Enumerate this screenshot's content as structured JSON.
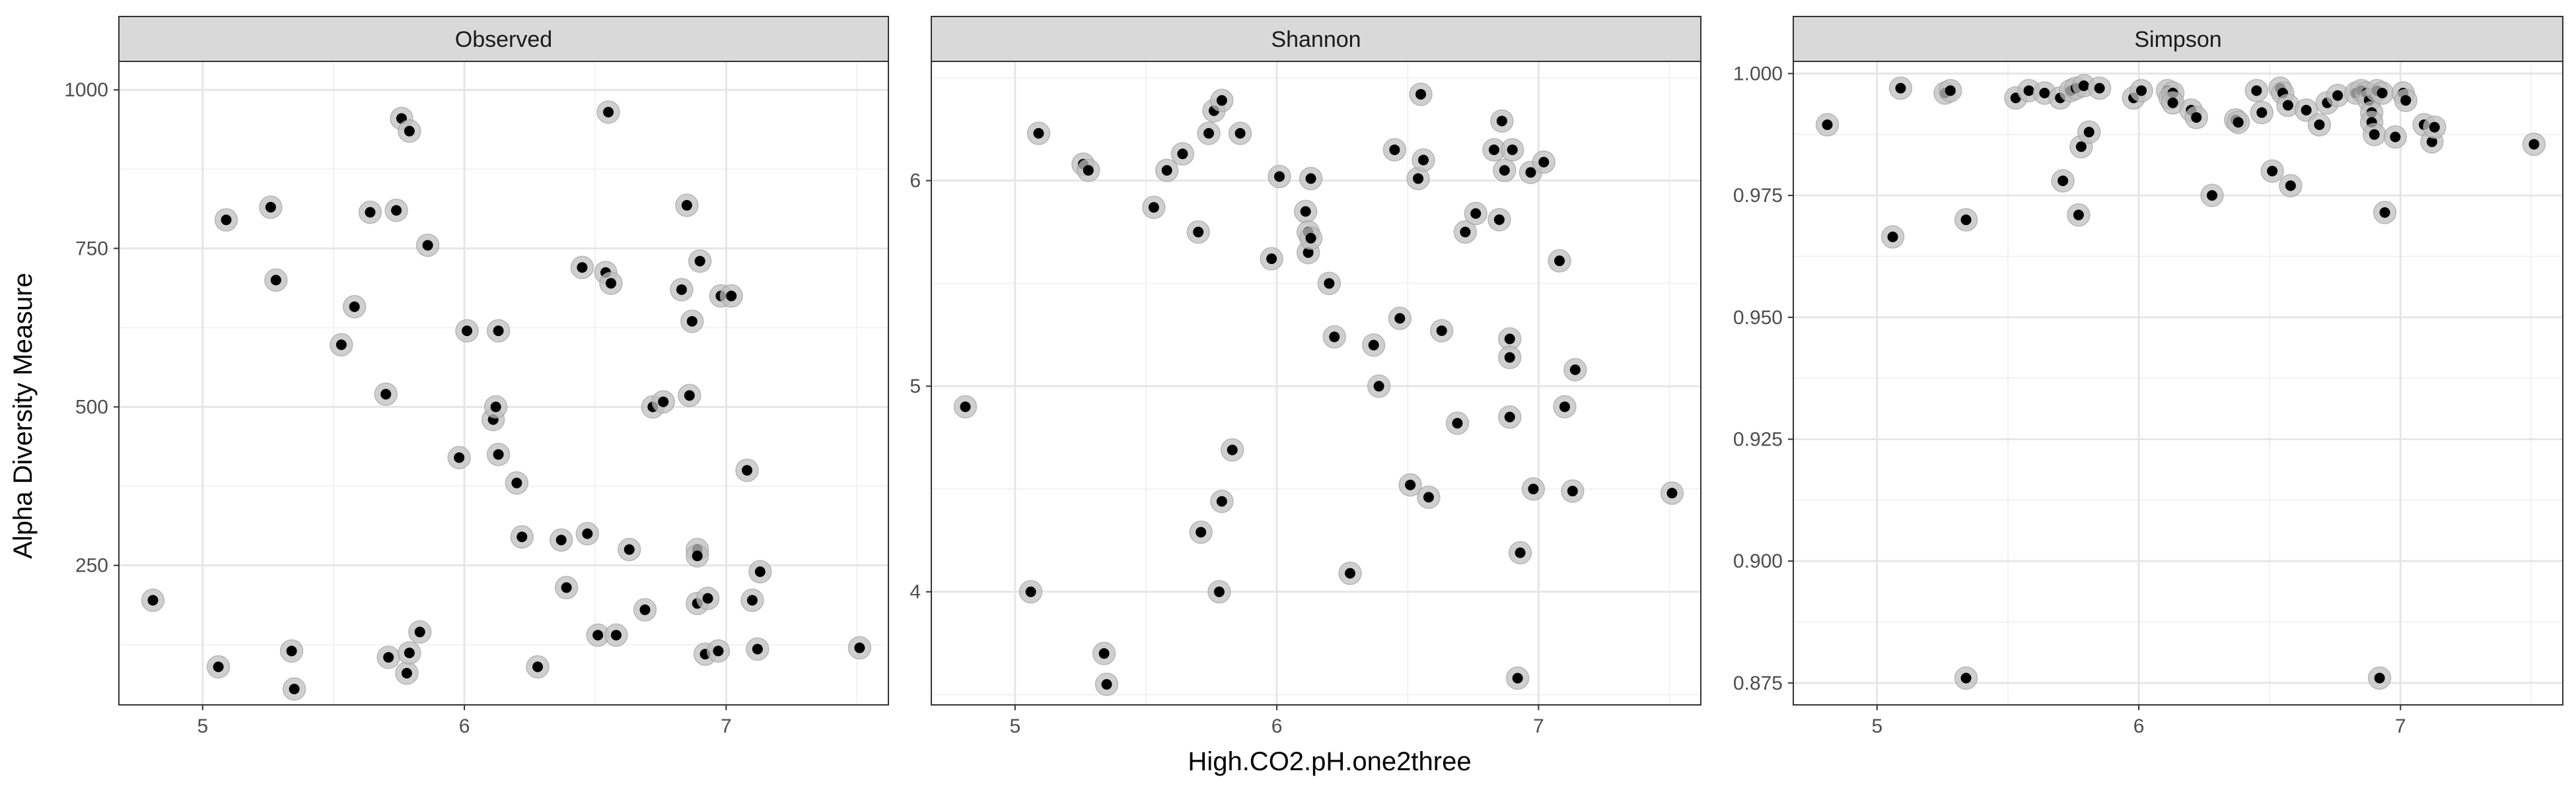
{
  "chart_data": {
    "type": "scatter",
    "xlabel": "High.CO2.pH.one2three",
    "ylabel": "Alpha Diversity Measure",
    "grid": true,
    "x_ticks": [
      5,
      6,
      7
    ],
    "xlim": [
      4.68,
      7.62
    ],
    "colors": {
      "point": "#000000",
      "halo": "#bfbfbf",
      "strip": "#d9d9d9",
      "panel_border": "#333333",
      "grid_major": "#e6e6e6",
      "grid_minor": "#f2f2f2"
    },
    "panels": [
      {
        "name": "Observed",
        "ylim": [
          30,
          1045
        ],
        "y_ticks": [
          250,
          500,
          750,
          1000
        ],
        "y_tick_labels": [
          "250",
          "500",
          "750",
          "1000"
        ],
        "points": [
          [
            4.81,
            195
          ],
          [
            5.06,
            90
          ],
          [
            5.09,
            795
          ],
          [
            5.26,
            815
          ],
          [
            5.28,
            700
          ],
          [
            5.34,
            115
          ],
          [
            5.35,
            55
          ],
          [
            5.53,
            598
          ],
          [
            5.58,
            658
          ],
          [
            5.64,
            807
          ],
          [
            5.7,
            520
          ],
          [
            5.71,
            105
          ],
          [
            5.74,
            810
          ],
          [
            5.76,
            955
          ],
          [
            5.78,
            80
          ],
          [
            5.79,
            935
          ],
          [
            5.79,
            112
          ],
          [
            5.83,
            145
          ],
          [
            5.86,
            755
          ],
          [
            5.98,
            420
          ],
          [
            6.01,
            620
          ],
          [
            6.11,
            480
          ],
          [
            6.12,
            500
          ],
          [
            6.13,
            620
          ],
          [
            6.13,
            425
          ],
          [
            6.2,
            380
          ],
          [
            6.22,
            295
          ],
          [
            6.28,
            90
          ],
          [
            6.37,
            290
          ],
          [
            6.39,
            215
          ],
          [
            6.45,
            720
          ],
          [
            6.47,
            300
          ],
          [
            6.51,
            140
          ],
          [
            6.54,
            712
          ],
          [
            6.56,
            695
          ],
          [
            6.55,
            965
          ],
          [
            6.58,
            140
          ],
          [
            6.63,
            275
          ],
          [
            6.69,
            180
          ],
          [
            6.72,
            500
          ],
          [
            6.76,
            508
          ],
          [
            6.83,
            685
          ],
          [
            6.85,
            818
          ],
          [
            6.86,
            518
          ],
          [
            6.87,
            635
          ],
          [
            6.89,
            275
          ],
          [
            6.89,
            265
          ],
          [
            6.9,
            730
          ],
          [
            6.89,
            190
          ],
          [
            6.92,
            110
          ],
          [
            6.93,
            198
          ],
          [
            6.97,
            115
          ],
          [
            6.98,
            675
          ],
          [
            7.02,
            675
          ],
          [
            7.08,
            400
          ],
          [
            7.1,
            195
          ],
          [
            7.12,
            118
          ],
          [
            7.13,
            240
          ],
          [
            7.51,
            120
          ]
        ]
      },
      {
        "name": "Shannon",
        "ylim": [
          3.45,
          6.58
        ],
        "y_ticks": [
          4,
          5,
          6
        ],
        "y_tick_labels": [
          "4",
          "5",
          "6"
        ],
        "points": [
          [
            4.81,
            4.9
          ],
          [
            5.06,
            4.0
          ],
          [
            5.09,
            6.23
          ],
          [
            5.26,
            6.08
          ],
          [
            5.28,
            6.05
          ],
          [
            5.34,
            3.7
          ],
          [
            5.35,
            3.55
          ],
          [
            5.53,
            5.87
          ],
          [
            5.58,
            6.05
          ],
          [
            5.64,
            6.13
          ],
          [
            5.7,
            5.75
          ],
          [
            5.71,
            4.29
          ],
          [
            5.74,
            6.23
          ],
          [
            5.76,
            6.34
          ],
          [
            5.78,
            4.0
          ],
          [
            5.79,
            6.39
          ],
          [
            5.79,
            4.44
          ],
          [
            5.83,
            4.69
          ],
          [
            5.86,
            6.23
          ],
          [
            5.98,
            5.62
          ],
          [
            6.01,
            6.02
          ],
          [
            6.11,
            5.85
          ],
          [
            6.12,
            5.75
          ],
          [
            6.12,
            5.65
          ],
          [
            6.13,
            6.01
          ],
          [
            6.13,
            5.72
          ],
          [
            6.2,
            5.5
          ],
          [
            6.22,
            5.24
          ],
          [
            6.28,
            4.09
          ],
          [
            6.37,
            5.2
          ],
          [
            6.39,
            5.0
          ],
          [
            6.45,
            6.15
          ],
          [
            6.47,
            5.33
          ],
          [
            6.51,
            4.52
          ],
          [
            6.54,
            6.01
          ],
          [
            6.55,
            6.42
          ],
          [
            6.56,
            6.1
          ],
          [
            6.58,
            4.46
          ],
          [
            6.63,
            5.27
          ],
          [
            6.69,
            4.82
          ],
          [
            6.72,
            5.75
          ],
          [
            6.76,
            5.84
          ],
          [
            6.83,
            6.15
          ],
          [
            6.85,
            5.81
          ],
          [
            6.86,
            6.29
          ],
          [
            6.87,
            6.05
          ],
          [
            6.89,
            5.23
          ],
          [
            6.89,
            5.14
          ],
          [
            6.9,
            6.15
          ],
          [
            6.89,
            4.85
          ],
          [
            6.92,
            3.58
          ],
          [
            6.93,
            4.19
          ],
          [
            6.97,
            6.04
          ],
          [
            6.98,
            4.5
          ],
          [
            7.02,
            6.09
          ],
          [
            7.08,
            5.61
          ],
          [
            7.1,
            4.9
          ],
          [
            7.13,
            4.49
          ],
          [
            7.14,
            5.08
          ],
          [
            7.51,
            4.48
          ]
        ]
      },
      {
        "name": "Simpson",
        "ylim": [
          0.8705,
          1.0025
        ],
        "y_ticks": [
          0.875,
          0.9,
          0.925,
          0.95,
          0.975,
          1.0
        ],
        "y_tick_labels": [
          "0.875",
          "0.900",
          "0.925",
          "0.950",
          "0.975",
          "1.000"
        ],
        "points": [
          [
            4.81,
            0.9895
          ],
          [
            5.06,
            0.9665
          ],
          [
            5.09,
            0.997
          ],
          [
            5.26,
            0.996
          ],
          [
            5.28,
            0.9965
          ],
          [
            5.34,
            0.97
          ],
          [
            5.34,
            0.876
          ],
          [
            5.53,
            0.995
          ],
          [
            5.58,
            0.9965
          ],
          [
            5.64,
            0.996
          ],
          [
            5.7,
            0.995
          ],
          [
            5.71,
            0.978
          ],
          [
            5.74,
            0.9965
          ],
          [
            5.76,
            0.997
          ],
          [
            5.77,
            0.971
          ],
          [
            5.78,
            0.985
          ],
          [
            5.79,
            0.9975
          ],
          [
            5.81,
            0.988
          ],
          [
            5.85,
            0.997
          ],
          [
            5.98,
            0.995
          ],
          [
            6.01,
            0.9965
          ],
          [
            6.11,
            0.9965
          ],
          [
            6.12,
            0.995
          ],
          [
            6.13,
            0.996
          ],
          [
            6.13,
            0.994
          ],
          [
            6.2,
            0.9925
          ],
          [
            6.22,
            0.991
          ],
          [
            6.28,
            0.975
          ],
          [
            6.37,
            0.9905
          ],
          [
            6.38,
            0.99
          ],
          [
            6.45,
            0.9965
          ],
          [
            6.47,
            0.992
          ],
          [
            6.51,
            0.98
          ],
          [
            6.54,
            0.997
          ],
          [
            6.55,
            0.996
          ],
          [
            6.57,
            0.9935
          ],
          [
            6.58,
            0.977
          ],
          [
            6.64,
            0.9925
          ],
          [
            6.69,
            0.9895
          ],
          [
            6.72,
            0.994
          ],
          [
            6.76,
            0.9955
          ],
          [
            6.83,
            0.996
          ],
          [
            6.85,
            0.9965
          ],
          [
            6.87,
            0.996
          ],
          [
            6.88,
            0.9945
          ],
          [
            6.89,
            0.992
          ],
          [
            6.89,
            0.99
          ],
          [
            6.9,
            0.9875
          ],
          [
            6.91,
            0.9965
          ],
          [
            6.93,
            0.996
          ],
          [
            6.94,
            0.9715
          ],
          [
            6.92,
            0.876
          ],
          [
            6.98,
            0.987
          ],
          [
            7.01,
            0.996
          ],
          [
            7.02,
            0.9945
          ],
          [
            7.09,
            0.9895
          ],
          [
            7.12,
            0.986
          ],
          [
            7.13,
            0.989
          ],
          [
            7.51,
            0.9855
          ]
        ]
      }
    ]
  }
}
